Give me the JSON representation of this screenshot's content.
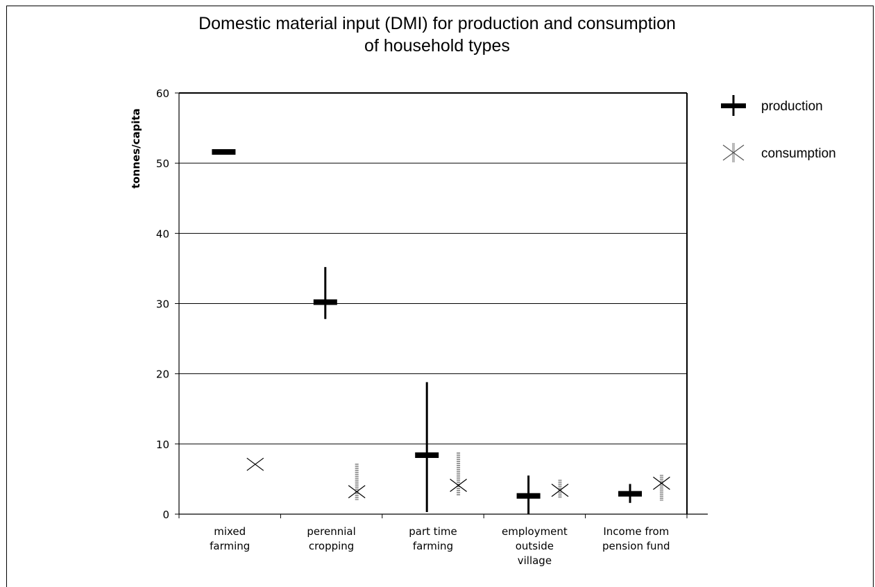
{
  "chart_data": {
    "type": "stock",
    "title_lines": [
      "Domestic material input (DMI) for production and consumption",
      "of household types"
    ],
    "ylabel": "tonnes/capita",
    "ylim": [
      0,
      60
    ],
    "yticks": [
      0,
      10,
      20,
      30,
      40,
      50,
      60
    ],
    "grid": true,
    "legend_position": "top-right",
    "categories": [
      [
        "mixed",
        "farming"
      ],
      [
        "perennial",
        "cropping"
      ],
      [
        "part time",
        "farming"
      ],
      [
        "employment",
        "outside",
        "village"
      ],
      [
        "Income from",
        "pension fund"
      ]
    ],
    "series": [
      {
        "name": "production",
        "marker": "bar",
        "color": "#000000",
        "values": [
          51.6,
          30.2,
          8.4,
          2.6,
          2.9
        ],
        "high": [
          51.6,
          35.2,
          18.8,
          5.5,
          4.3
        ],
        "low": [
          51.6,
          27.8,
          0.3,
          0.0,
          1.6
        ]
      },
      {
        "name": "consumption",
        "marker": "x",
        "color": "#999999",
        "values": [
          7.1,
          3.2,
          4.1,
          3.4,
          4.4
        ],
        "high": [
          7.1,
          7.2,
          8.8,
          4.9,
          5.6
        ],
        "low": [
          7.1,
          2.0,
          2.6,
          2.3,
          1.9
        ]
      }
    ]
  }
}
